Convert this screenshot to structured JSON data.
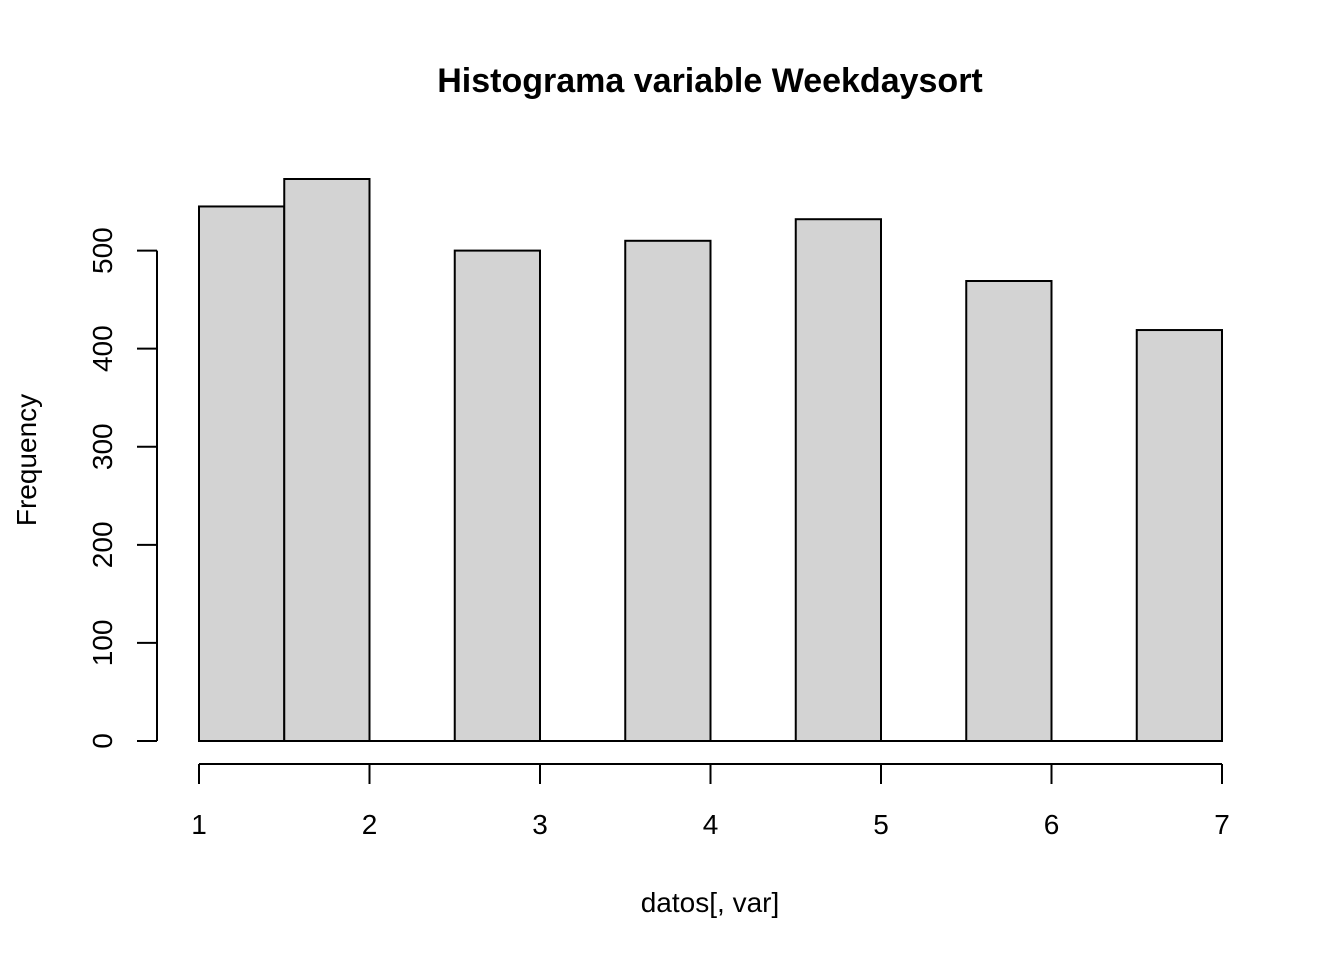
{
  "chart_data": {
    "type": "bar",
    "title": "Histograma variable Weekdaysort",
    "xlabel": "datos[, var]",
    "ylabel": "Frequency",
    "bins": [
      {
        "start": 1.0,
        "end": 1.5,
        "value": 545
      },
      {
        "start": 1.5,
        "end": 2.0,
        "value": 573
      },
      {
        "start": 2.0,
        "end": 2.5,
        "value": 0
      },
      {
        "start": 2.5,
        "end": 3.0,
        "value": 500
      },
      {
        "start": 3.0,
        "end": 3.5,
        "value": 0
      },
      {
        "start": 3.5,
        "end": 4.0,
        "value": 510
      },
      {
        "start": 4.0,
        "end": 4.5,
        "value": 0
      },
      {
        "start": 4.5,
        "end": 5.0,
        "value": 532
      },
      {
        "start": 5.0,
        "end": 5.5,
        "value": 0
      },
      {
        "start": 5.5,
        "end": 6.0,
        "value": 469
      },
      {
        "start": 6.0,
        "end": 6.5,
        "value": 0
      },
      {
        "start": 6.5,
        "end": 7.0,
        "value": 419
      }
    ],
    "xlim": [
      1,
      7
    ],
    "ylim": [
      0,
      573
    ],
    "x_ticks": [
      "1",
      "2",
      "3",
      "4",
      "5",
      "6",
      "7"
    ],
    "y_ticks": [
      "0",
      "100",
      "200",
      "300",
      "400",
      "500"
    ],
    "bar_fill": "#d3d3d3",
    "bar_stroke": "#000000",
    "grid": false,
    "legend": "none"
  }
}
